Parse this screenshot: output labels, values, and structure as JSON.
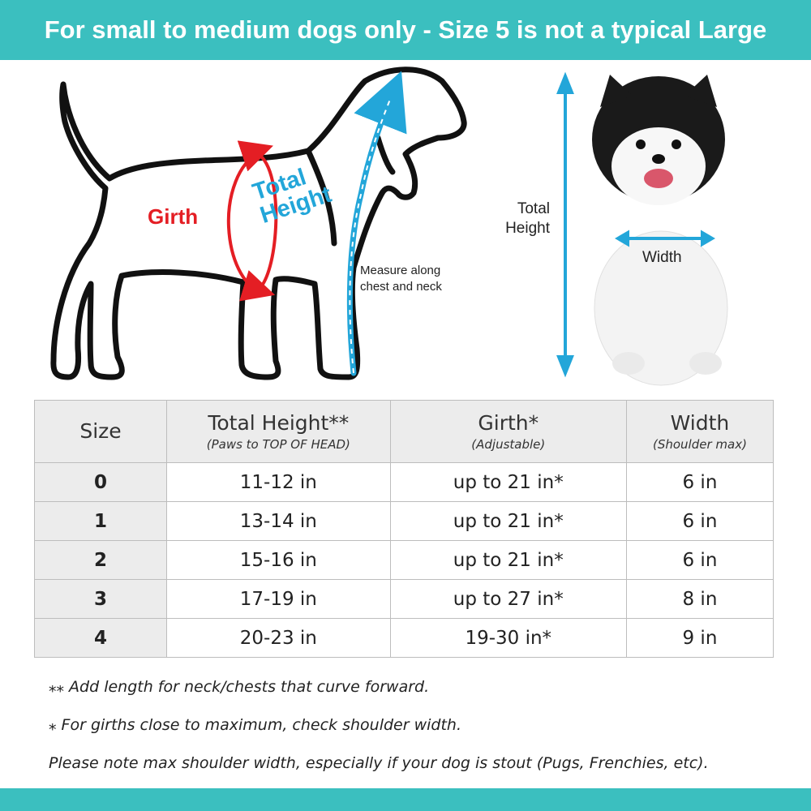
{
  "banner": {
    "title": "For small to medium dogs only - Size 5 is not a typical Large"
  },
  "illustration": {
    "girth_label": "Girth",
    "total_height_label_line1": "Total",
    "total_height_label_line2": "Height",
    "measure_note_line1": "Measure along",
    "measure_note_line2": "chest and neck",
    "photo_total_line1": "Total",
    "photo_total_line2": "Height",
    "photo_width_label": "Width",
    "colors": {
      "girth": "#e41e24",
      "height": "#23a6d9",
      "banner": "#3bbfbf"
    }
  },
  "table": {
    "headers": [
      {
        "title": "Size",
        "sub": ""
      },
      {
        "title": "Total Height**",
        "sub": "(Paws to TOP OF HEAD)"
      },
      {
        "title": "Girth*",
        "sub": "(Adjustable)"
      },
      {
        "title": "Width",
        "sub": "(Shoulder max)"
      }
    ],
    "rows": [
      {
        "size": "0",
        "height": "11-12 in",
        "girth": "up to 21 in*",
        "width": "6 in"
      },
      {
        "size": "1",
        "height": "13-14 in",
        "girth": "up to 21 in*",
        "width": "6 in"
      },
      {
        "size": "2",
        "height": "15-16 in",
        "girth": "up to 21 in*",
        "width": "6 in"
      },
      {
        "size": "3",
        "height": "17-19 in",
        "girth": "up to 27 in*",
        "width": "8 in"
      },
      {
        "size": "4",
        "height": "20-23 in",
        "girth": "19-30 in*",
        "width": "9 in"
      }
    ]
  },
  "notes": [
    "⁎⁎ Add length for neck/chests that curve forward.",
    "⁎ For girths close to maximum, check shoulder width.",
    "Please note max shoulder width, especially if your dog is stout (Pugs, Frenchies, etc)."
  ]
}
